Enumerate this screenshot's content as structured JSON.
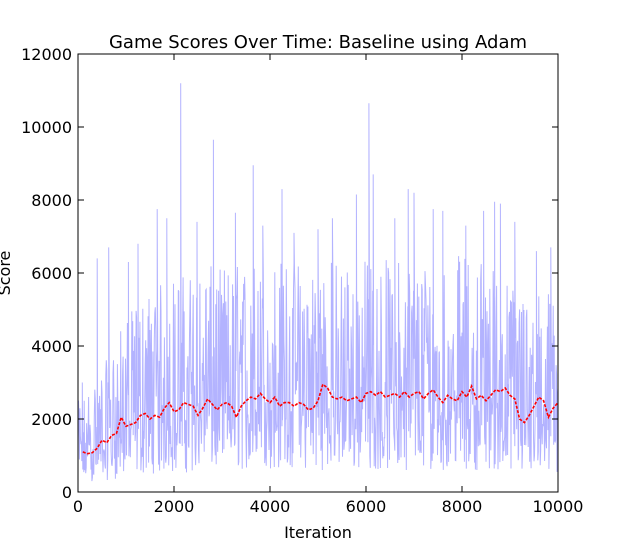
{
  "chart_data": {
    "type": "line",
    "title": "Game Scores Over Time: Baseline using Adam",
    "xlabel": "Iteration",
    "ylabel": "Score",
    "xlim": [
      0,
      10000
    ],
    "ylim": [
      0,
      12000
    ],
    "xticks": [
      "0",
      "2000",
      "4000",
      "6000",
      "8000",
      "10000"
    ],
    "yticks": [
      "0",
      "2000",
      "4000",
      "6000",
      "8000",
      "10000",
      "12000"
    ],
    "grid": false,
    "legend": "none",
    "series": [
      {
        "style": "raw",
        "color": "#b3b3ff",
        "band": {
          "x": [
            0,
            500,
            1000,
            1500,
            2000,
            2500,
            3000,
            3500,
            4000,
            4500,
            5000,
            5500,
            6000,
            6500,
            7000,
            7500,
            8000,
            8500,
            9000,
            9500,
            10000
          ],
          "low": [
            250,
            300,
            400,
            500,
            500,
            550,
            550,
            600,
            600,
            600,
            600,
            600,
            600,
            600,
            600,
            600,
            600,
            600,
            500,
            450,
            400
          ],
          "high": [
            2600,
            3500,
            5000,
            5800,
            6200,
            6400,
            6500,
            6600,
            6700,
            6700,
            6700,
            6700,
            6700,
            6700,
            6700,
            6700,
            6800,
            6800,
            6000,
            5800,
            5800
          ]
        },
        "spikes": [
          {
            "x": 90,
            "y": 3000
          },
          {
            "x": 400,
            "y": 6400
          },
          {
            "x": 640,
            "y": 6700
          },
          {
            "x": 1050,
            "y": 6300
          },
          {
            "x": 1250,
            "y": 6800
          },
          {
            "x": 1650,
            "y": 7750
          },
          {
            "x": 1850,
            "y": 7500
          },
          {
            "x": 2140,
            "y": 11200
          },
          {
            "x": 2480,
            "y": 7400
          },
          {
            "x": 2820,
            "y": 9650
          },
          {
            "x": 3280,
            "y": 7650
          },
          {
            "x": 3650,
            "y": 8950
          },
          {
            "x": 3850,
            "y": 7300
          },
          {
            "x": 4250,
            "y": 8300
          },
          {
            "x": 4500,
            "y": 7100
          },
          {
            "x": 5000,
            "y": 7200
          },
          {
            "x": 5300,
            "y": 7500
          },
          {
            "x": 5800,
            "y": 8150
          },
          {
            "x": 6060,
            "y": 10650
          },
          {
            "x": 6150,
            "y": 8700
          },
          {
            "x": 6600,
            "y": 7500
          },
          {
            "x": 6880,
            "y": 8300
          },
          {
            "x": 7000,
            "y": 8200
          },
          {
            "x": 7400,
            "y": 7750
          },
          {
            "x": 7600,
            "y": 7700
          },
          {
            "x": 8080,
            "y": 7300
          },
          {
            "x": 8450,
            "y": 7700
          },
          {
            "x": 8680,
            "y": 7950
          },
          {
            "x": 8800,
            "y": 7900
          },
          {
            "x": 9100,
            "y": 7400
          },
          {
            "x": 9550,
            "y": 6600
          },
          {
            "x": 9850,
            "y": 6700
          }
        ]
      },
      {
        "style": "moving-average",
        "color": "#ff0000",
        "x": [
          100,
          200,
          300,
          400,
          500,
          600,
          700,
          800,
          900,
          1000,
          1100,
          1200,
          1300,
          1400,
          1500,
          1600,
          1700,
          1800,
          1900,
          2000,
          2100,
          2200,
          2300,
          2400,
          2500,
          2600,
          2700,
          2800,
          2900,
          3000,
          3100,
          3200,
          3300,
          3400,
          3500,
          3600,
          3700,
          3800,
          3900,
          4000,
          4100,
          4200,
          4300,
          4400,
          4500,
          4600,
          4700,
          4800,
          4900,
          5000,
          5100,
          5200,
          5300,
          5400,
          5500,
          5600,
          5700,
          5800,
          5900,
          6000,
          6100,
          6200,
          6300,
          6400,
          6500,
          6600,
          6700,
          6800,
          6900,
          7000,
          7100,
          7200,
          7300,
          7400,
          7500,
          7600,
          7700,
          7800,
          7900,
          8000,
          8100,
          8200,
          8300,
          8400,
          8500,
          8600,
          8700,
          8800,
          8900,
          9000,
          9100,
          9200,
          9300,
          9400,
          9500,
          9600,
          9700,
          9800,
          9900,
          10000
        ],
        "y": [
          1100,
          1050,
          1080,
          1200,
          1420,
          1350,
          1550,
          1600,
          2050,
          1800,
          1850,
          1900,
          2100,
          2150,
          2000,
          2100,
          2050,
          2300,
          2450,
          2200,
          2250,
          2450,
          2400,
          2350,
          2100,
          2300,
          2550,
          2400,
          2250,
          2400,
          2450,
          2350,
          2050,
          2350,
          2500,
          2600,
          2550,
          2700,
          2550,
          2450,
          2600,
          2350,
          2450,
          2450,
          2350,
          2450,
          2400,
          2250,
          2300,
          2500,
          2950,
          2850,
          2600,
          2550,
          2600,
          2500,
          2550,
          2600,
          2450,
          2700,
          2750,
          2650,
          2750,
          2600,
          2650,
          2700,
          2600,
          2750,
          2600,
          2700,
          2750,
          2550,
          2700,
          2800,
          2600,
          2450,
          2650,
          2550,
          2500,
          2750,
          2600,
          2900,
          2550,
          2650,
          2500,
          2650,
          2800,
          2750,
          2850,
          2650,
          2550,
          2000,
          1900,
          2100,
          2350,
          2600,
          2500,
          2050,
          2300,
          2450
        ]
      }
    ]
  }
}
